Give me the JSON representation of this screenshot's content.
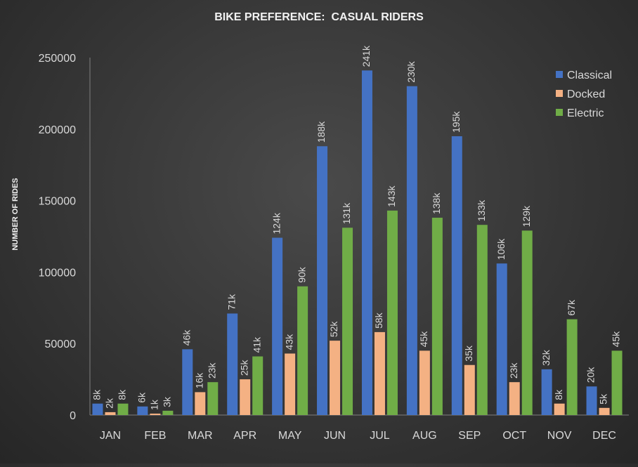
{
  "chart_data": {
    "type": "bar",
    "title": "BIKE PREFERENCE:  CASUAL RIDERS",
    "xlabel": "",
    "ylabel": "NUMBER OF RIDES",
    "ylim": [
      0,
      250000
    ],
    "yticks": [
      "0",
      "50000",
      "100000",
      "150000",
      "200000",
      "250000"
    ],
    "grid": false,
    "legend_position": "top-right",
    "categories": [
      "JAN",
      "FEB",
      "MAR",
      "APR",
      "MAY",
      "JUN",
      "JUL",
      "AUG",
      "SEP",
      "OCT",
      "NOV",
      "DEC"
    ],
    "series": [
      {
        "name": "Classical",
        "color": "#4472c4",
        "values": [
          8000,
          6000,
          46000,
          71000,
          124000,
          188000,
          241000,
          230000,
          195000,
          106000,
          32000,
          20000
        ],
        "labels": [
          "8k",
          "6k",
          "46k",
          "71k",
          "124k",
          "188k",
          "241k",
          "230k",
          "195k",
          "106k",
          "32k",
          "20k"
        ]
      },
      {
        "name": "Docked",
        "color": "#f4b183",
        "values": [
          2000,
          1000,
          16000,
          25000,
          43000,
          52000,
          58000,
          45000,
          35000,
          23000,
          8000,
          5000
        ],
        "labels": [
          "2k",
          "1k",
          "16k",
          "25k",
          "43k",
          "52k",
          "58k",
          "45k",
          "35k",
          "23k",
          "8k",
          "5k"
        ]
      },
      {
        "name": "Electric",
        "color": "#70ad47",
        "values": [
          8000,
          3000,
          23000,
          41000,
          90000,
          131000,
          143000,
          138000,
          133000,
          129000,
          67000,
          45000
        ],
        "labels": [
          "8k",
          "3k",
          "23k",
          "41k",
          "90k",
          "131k",
          "143k",
          "138k",
          "133k",
          "129k",
          "67k",
          "45k"
        ]
      }
    ]
  }
}
